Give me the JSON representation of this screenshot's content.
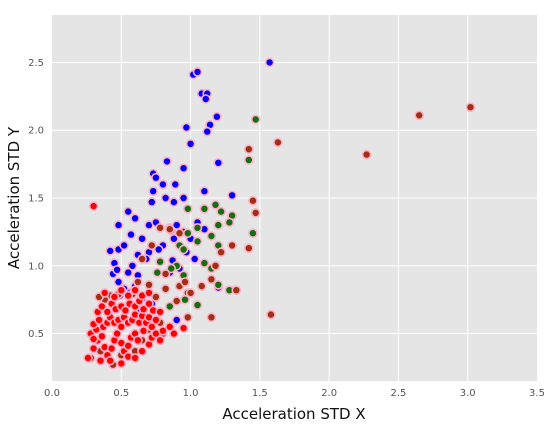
{
  "chart_data": {
    "type": "scatter",
    "xlabel": "Acceleration STD X",
    "ylabel": "Acceleration STD Y",
    "xlim": [
      0.0,
      3.5
    ],
    "ylim": [
      0.15,
      2.85
    ],
    "xticks": [
      "0.0",
      "0.5",
      "1.0",
      "1.5",
      "2.0",
      "2.5",
      "3.0",
      "3.5"
    ],
    "yticks": [
      "0.5",
      "1.0",
      "1.5",
      "2.0",
      "2.5"
    ],
    "grid": true,
    "colors": {
      "background": "#e5e5e5",
      "grid": "#ffffff",
      "blue": "#0000ff",
      "green": "#107010",
      "brown": "#a03010",
      "red": "#ff0000",
      "halo": "#ffb0c8"
    },
    "series": [
      {
        "color": "blue",
        "points": [
          [
            1.57,
            2.5
          ],
          [
            1.02,
            2.41
          ],
          [
            1.05,
            2.43
          ],
          [
            1.08,
            2.27
          ],
          [
            1.12,
            2.27
          ],
          [
            1.11,
            2.23
          ],
          [
            0.97,
            2.02
          ],
          [
            1.19,
            2.1
          ],
          [
            1.14,
            2.04
          ],
          [
            1.12,
            1.99
          ],
          [
            1.0,
            1.9
          ],
          [
            0.95,
            1.72
          ],
          [
            0.83,
            1.77
          ],
          [
            0.89,
            1.6
          ],
          [
            1.2,
            1.76
          ],
          [
            0.73,
            1.68
          ],
          [
            0.75,
            1.65
          ],
          [
            0.8,
            1.6
          ],
          [
            0.73,
            1.55
          ],
          [
            0.82,
            1.5
          ],
          [
            0.95,
            1.5
          ],
          [
            1.1,
            1.55
          ],
          [
            1.3,
            1.52
          ],
          [
            0.88,
            1.47
          ],
          [
            0.72,
            1.47
          ],
          [
            0.55,
            1.4
          ],
          [
            0.6,
            1.35
          ],
          [
            0.48,
            1.3
          ],
          [
            0.7,
            1.3
          ],
          [
            0.75,
            1.32
          ],
          [
            0.85,
            1.28
          ],
          [
            0.9,
            1.3
          ],
          [
            0.95,
            1.25
          ],
          [
            1.05,
            1.32
          ],
          [
            1.1,
            1.27
          ],
          [
            1.0,
            1.2
          ],
          [
            0.57,
            1.23
          ],
          [
            0.65,
            1.2
          ],
          [
            0.8,
            1.15
          ],
          [
            0.88,
            1.2
          ],
          [
            0.92,
            1.15
          ],
          [
            0.42,
            1.11
          ],
          [
            0.48,
            1.12
          ],
          [
            0.52,
            1.15
          ],
          [
            0.62,
            1.08
          ],
          [
            0.7,
            1.1
          ],
          [
            0.77,
            1.12
          ],
          [
            0.97,
            1.1
          ],
          [
            1.03,
            1.05
          ],
          [
            0.45,
            1.02
          ],
          [
            0.58,
            1.0
          ],
          [
            0.68,
            1.05
          ],
          [
            0.87,
            1.04
          ],
          [
            0.44,
            0.94
          ],
          [
            0.47,
            0.97
          ],
          [
            0.55,
            0.95
          ],
          [
            0.62,
            0.93
          ],
          [
            0.48,
            0.88
          ],
          [
            0.52,
            0.83
          ],
          [
            0.6,
            0.85
          ],
          [
            0.49,
            0.78
          ],
          [
            0.56,
            0.8
          ],
          [
            0.65,
            0.76
          ],
          [
            1.2,
            0.84
          ],
          [
            0.72,
            0.72
          ],
          [
            0.63,
            0.67
          ],
          [
            0.9,
            0.6
          ],
          [
            0.85,
            0.95
          ],
          [
            0.92,
            0.98
          ]
        ]
      },
      {
        "color": "green",
        "points": [
          [
            1.47,
            2.08
          ],
          [
            1.42,
            1.78
          ],
          [
            1.3,
            1.37
          ],
          [
            1.18,
            1.45
          ],
          [
            1.22,
            1.4
          ],
          [
            1.1,
            1.42
          ],
          [
            0.98,
            1.42
          ],
          [
            1.28,
            1.32
          ],
          [
            1.2,
            1.3
          ],
          [
            1.05,
            1.28
          ],
          [
            1.15,
            1.22
          ],
          [
            0.98,
            1.24
          ],
          [
            0.86,
            1.26
          ],
          [
            1.2,
            1.15
          ],
          [
            1.05,
            1.18
          ],
          [
            0.92,
            1.15
          ],
          [
            0.95,
            1.12
          ],
          [
            1.45,
            1.24
          ],
          [
            1.1,
            1.02
          ],
          [
            0.78,
            1.03
          ],
          [
            0.9,
            1.0
          ],
          [
            1.15,
            0.98
          ],
          [
            0.86,
            0.98
          ],
          [
            0.76,
            0.95
          ],
          [
            0.95,
            0.93
          ],
          [
            1.2,
            0.86
          ],
          [
            0.98,
            0.8
          ],
          [
            0.96,
            0.75
          ],
          [
            1.05,
            0.71
          ],
          [
            0.85,
            0.7
          ],
          [
            1.28,
            0.82
          ]
        ]
      },
      {
        "color": "brown",
        "points": [
          [
            3.02,
            2.17
          ],
          [
            2.65,
            2.11
          ],
          [
            2.27,
            1.82
          ],
          [
            1.63,
            1.91
          ],
          [
            1.42,
            1.86
          ],
          [
            1.45,
            1.48
          ],
          [
            1.47,
            1.39
          ],
          [
            1.42,
            1.13
          ],
          [
            1.3,
            1.15
          ],
          [
            1.22,
            1.1
          ],
          [
            1.18,
            1.0
          ],
          [
            1.15,
            0.9
          ],
          [
            1.08,
            0.85
          ],
          [
            1.33,
            0.82
          ],
          [
            1.0,
            0.8
          ],
          [
            0.9,
            0.74
          ],
          [
            0.82,
            0.83
          ],
          [
            0.85,
            1.27
          ],
          [
            0.78,
            1.28
          ],
          [
            0.92,
            1.24
          ],
          [
            0.72,
            1.15
          ],
          [
            0.65,
            1.05
          ],
          [
            0.92,
            0.85
          ],
          [
            0.7,
            0.86
          ],
          [
            0.62,
            0.88
          ],
          [
            0.58,
            0.79
          ],
          [
            0.55,
            0.78
          ],
          [
            0.48,
            0.79
          ],
          [
            0.42,
            0.78
          ],
          [
            0.38,
            0.75
          ],
          [
            0.34,
            0.77
          ],
          [
            1.58,
            0.64
          ],
          [
            1.15,
            0.62
          ],
          [
            0.98,
            0.62
          ],
          [
            0.78,
            0.58
          ],
          [
            0.8,
            0.5
          ],
          [
            0.7,
            0.53
          ],
          [
            0.65,
            0.45
          ],
          [
            0.6,
            0.37
          ],
          [
            0.5,
            0.34
          ],
          [
            0.44,
            0.27
          ],
          [
            0.28,
            0.32
          ],
          [
            0.35,
            0.37
          ],
          [
            0.96,
            0.88
          ],
          [
            0.82,
            0.94
          ],
          [
            0.75,
            0.77
          ]
        ]
      },
      {
        "color": "red",
        "points": [
          [
            0.3,
            1.44
          ],
          [
            0.26,
            0.32
          ],
          [
            0.3,
            0.39
          ],
          [
            0.33,
            0.45
          ],
          [
            0.28,
            0.5
          ],
          [
            0.32,
            0.53
          ],
          [
            0.36,
            0.48
          ],
          [
            0.38,
            0.4
          ],
          [
            0.4,
            0.34
          ],
          [
            0.43,
            0.39
          ],
          [
            0.45,
            0.45
          ],
          [
            0.47,
            0.5
          ],
          [
            0.5,
            0.43
          ],
          [
            0.52,
            0.37
          ],
          [
            0.55,
            0.41
          ],
          [
            0.57,
            0.47
          ],
          [
            0.6,
            0.5
          ],
          [
            0.62,
            0.45
          ],
          [
            0.66,
            0.52
          ],
          [
            0.3,
            0.57
          ],
          [
            0.34,
            0.6
          ],
          [
            0.37,
            0.55
          ],
          [
            0.4,
            0.58
          ],
          [
            0.42,
            0.62
          ],
          [
            0.45,
            0.58
          ],
          [
            0.48,
            0.6
          ],
          [
            0.5,
            0.55
          ],
          [
            0.52,
            0.62
          ],
          [
            0.55,
            0.58
          ],
          [
            0.58,
            0.6
          ],
          [
            0.6,
            0.64
          ],
          [
            0.63,
            0.58
          ],
          [
            0.65,
            0.63
          ],
          [
            0.68,
            0.58
          ],
          [
            0.7,
            0.62
          ],
          [
            0.72,
            0.55
          ],
          [
            0.75,
            0.6
          ],
          [
            0.33,
            0.66
          ],
          [
            0.36,
            0.7
          ],
          [
            0.4,
            0.66
          ],
          [
            0.43,
            0.72
          ],
          [
            0.46,
            0.68
          ],
          [
            0.5,
            0.7
          ],
          [
            0.53,
            0.67
          ],
          [
            0.56,
            0.72
          ],
          [
            0.6,
            0.7
          ],
          [
            0.63,
            0.74
          ],
          [
            0.66,
            0.68
          ],
          [
            0.7,
            0.72
          ],
          [
            0.73,
            0.67
          ],
          [
            0.38,
            0.8
          ],
          [
            0.45,
            0.77
          ],
          [
            0.5,
            0.82
          ],
          [
            0.55,
            0.78
          ],
          [
            0.6,
            0.82
          ],
          [
            0.65,
            0.78
          ],
          [
            0.7,
            0.8
          ],
          [
            0.78,
            0.66
          ],
          [
            0.3,
            0.46
          ],
          [
            0.35,
            0.3
          ],
          [
            0.42,
            0.3
          ],
          [
            0.5,
            0.28
          ],
          [
            0.55,
            0.33
          ],
          [
            0.6,
            0.32
          ],
          [
            0.65,
            0.37
          ],
          [
            0.7,
            0.42
          ],
          [
            0.72,
            0.47
          ],
          [
            0.75,
            0.5
          ],
          [
            0.78,
            0.45
          ],
          [
            0.8,
            0.52
          ],
          [
            0.85,
            0.55
          ],
          [
            0.88,
            0.5
          ],
          [
            0.95,
            0.54
          ]
        ]
      }
    ]
  }
}
